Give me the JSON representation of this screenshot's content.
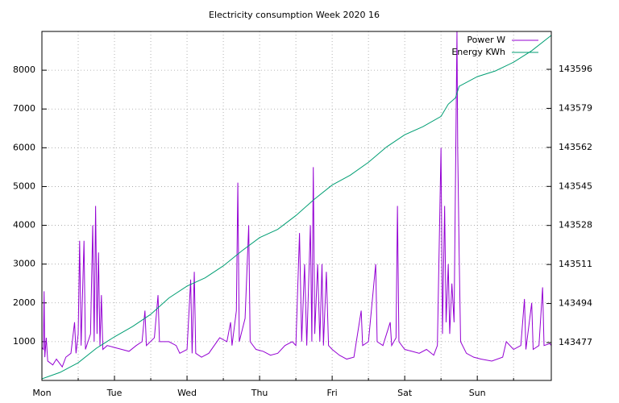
{
  "chart_data": {
    "type": "line",
    "title": "Electricity consumption Week 2020 16",
    "xlim": [
      0,
      7.02
    ],
    "xticks": [
      {
        "value": 0,
        "label": "Mon"
      },
      {
        "value": 1,
        "label": "Tue"
      },
      {
        "value": 2,
        "label": "Wed"
      },
      {
        "value": 3,
        "label": "Thu"
      },
      {
        "value": 4,
        "label": "Fri"
      },
      {
        "value": 5,
        "label": "Sat"
      },
      {
        "value": 6,
        "label": "Sun"
      }
    ],
    "x_minor_ticks": [
      0.5,
      1.5,
      2.5,
      3.5,
      4.5,
      5.5,
      6.5
    ],
    "ylim": [
      0,
      9000
    ],
    "yticks": [
      1000,
      2000,
      3000,
      4000,
      5000,
      6000,
      7000,
      8000
    ],
    "y2lim": [
      143460.5,
      143612.5
    ],
    "y2ticks": [
      143477,
      143494,
      143511,
      143528,
      143545,
      143562,
      143579,
      143596
    ],
    "grid": true,
    "legend": "top-right",
    "series": [
      {
        "name": "Power W",
        "color": "#9400d3",
        "x": [
          0,
          0.02,
          0.03,
          0.04,
          0.06,
          0.08,
          0.15,
          0.2,
          0.28,
          0.33,
          0.4,
          0.45,
          0.47,
          0.5,
          0.52,
          0.54,
          0.58,
          0.6,
          0.67,
          0.7,
          0.72,
          0.74,
          0.76,
          0.78,
          0.8,
          0.82,
          0.84,
          0.9,
          1,
          1.1,
          1.2,
          1.3,
          1.38,
          1.42,
          1.44,
          1.55,
          1.6,
          1.62,
          1.75,
          1.85,
          1.9,
          2,
          2.05,
          2.07,
          2.1,
          2.12,
          2.2,
          2.3,
          2.45,
          2.55,
          2.6,
          2.62,
          2.68,
          2.7,
          2.72,
          2.8,
          2.85,
          2.87,
          2.95,
          3.05,
          3.15,
          3.25,
          3.35,
          3.45,
          3.5,
          3.55,
          3.58,
          3.62,
          3.65,
          3.7,
          3.72,
          3.74,
          3.76,
          3.8,
          3.83,
          3.86,
          3.88,
          3.92,
          3.95,
          4,
          4.1,
          4.2,
          4.3,
          4.4,
          4.42,
          4.5,
          4.6,
          4.62,
          4.7,
          4.8,
          4.82,
          4.88,
          4.9,
          4.92,
          5,
          5.1,
          5.2,
          5.3,
          5.4,
          5.45,
          5.5,
          5.52,
          5.55,
          5.57,
          5.6,
          5.62,
          5.65,
          5.68,
          5.72,
          5.73,
          5.75,
          5.77,
          5.85,
          5.95,
          6.05,
          6.2,
          6.35,
          6.4,
          6.5,
          6.6,
          6.65,
          6.67,
          6.75,
          6.77,
          6.85,
          6.9,
          6.92,
          7,
          7.02
        ],
        "values": [
          850,
          800,
          2300,
          600,
          1100,
          500,
          400,
          550,
          350,
          600,
          700,
          1500,
          700,
          1200,
          3600,
          900,
          3600,
          800,
          1200,
          4000,
          1000,
          4500,
          1200,
          3300,
          900,
          2200,
          800,
          900,
          850,
          800,
          750,
          900,
          1000,
          1800,
          900,
          1100,
          2200,
          1000,
          1000,
          900,
          700,
          800,
          2600,
          700,
          2800,
          700,
          600,
          700,
          1100,
          1000,
          1500,
          900,
          1800,
          5100,
          1000,
          1600,
          4000,
          1000,
          800,
          750,
          650,
          700,
          900,
          1000,
          900,
          3800,
          1000,
          3000,
          900,
          4000,
          1000,
          5500,
          1200,
          3000,
          1000,
          3000,
          900,
          2800,
          900,
          800,
          650,
          550,
          600,
          1800,
          900,
          1000,
          3000,
          1000,
          900,
          1500,
          900,
          1100,
          4500,
          1000,
          800,
          750,
          700,
          800,
          650,
          900,
          6000,
          1200,
          4500,
          1500,
          3000,
          1200,
          2500,
          1500,
          9000,
          6000,
          3300,
          1000,
          700,
          600,
          550,
          500,
          600,
          1000,
          800,
          900,
          2100,
          800,
          2000,
          800,
          900,
          2400,
          900,
          950,
          900
        ]
      },
      {
        "name": "Energy KWh",
        "color": "#009e73",
        "axis": "y2",
        "x": [
          0,
          0.25,
          0.5,
          0.75,
          1,
          1.25,
          1.5,
          1.75,
          2,
          2.25,
          2.5,
          2.75,
          3,
          3.25,
          3.5,
          3.75,
          4,
          4.25,
          4.5,
          4.75,
          5,
          5.25,
          5.5,
          5.6,
          5.7,
          5.75,
          6,
          6.25,
          6.5,
          6.75,
          7.02
        ],
        "values": [
          143461.2,
          143464,
          143468.2,
          143474.5,
          143479.5,
          143484,
          143489.3,
          143496.4,
          143501.6,
          143505.2,
          143510.4,
          143516.8,
          143522.7,
          143526.3,
          143532.3,
          143539.3,
          143545.6,
          143549.9,
          143555.5,
          143562.2,
          143567.5,
          143571,
          143575.5,
          143580.8,
          143583.6,
          143588.6,
          143592.8,
          143595.3,
          143599.1,
          143604.1,
          143610.8
        ]
      }
    ]
  }
}
